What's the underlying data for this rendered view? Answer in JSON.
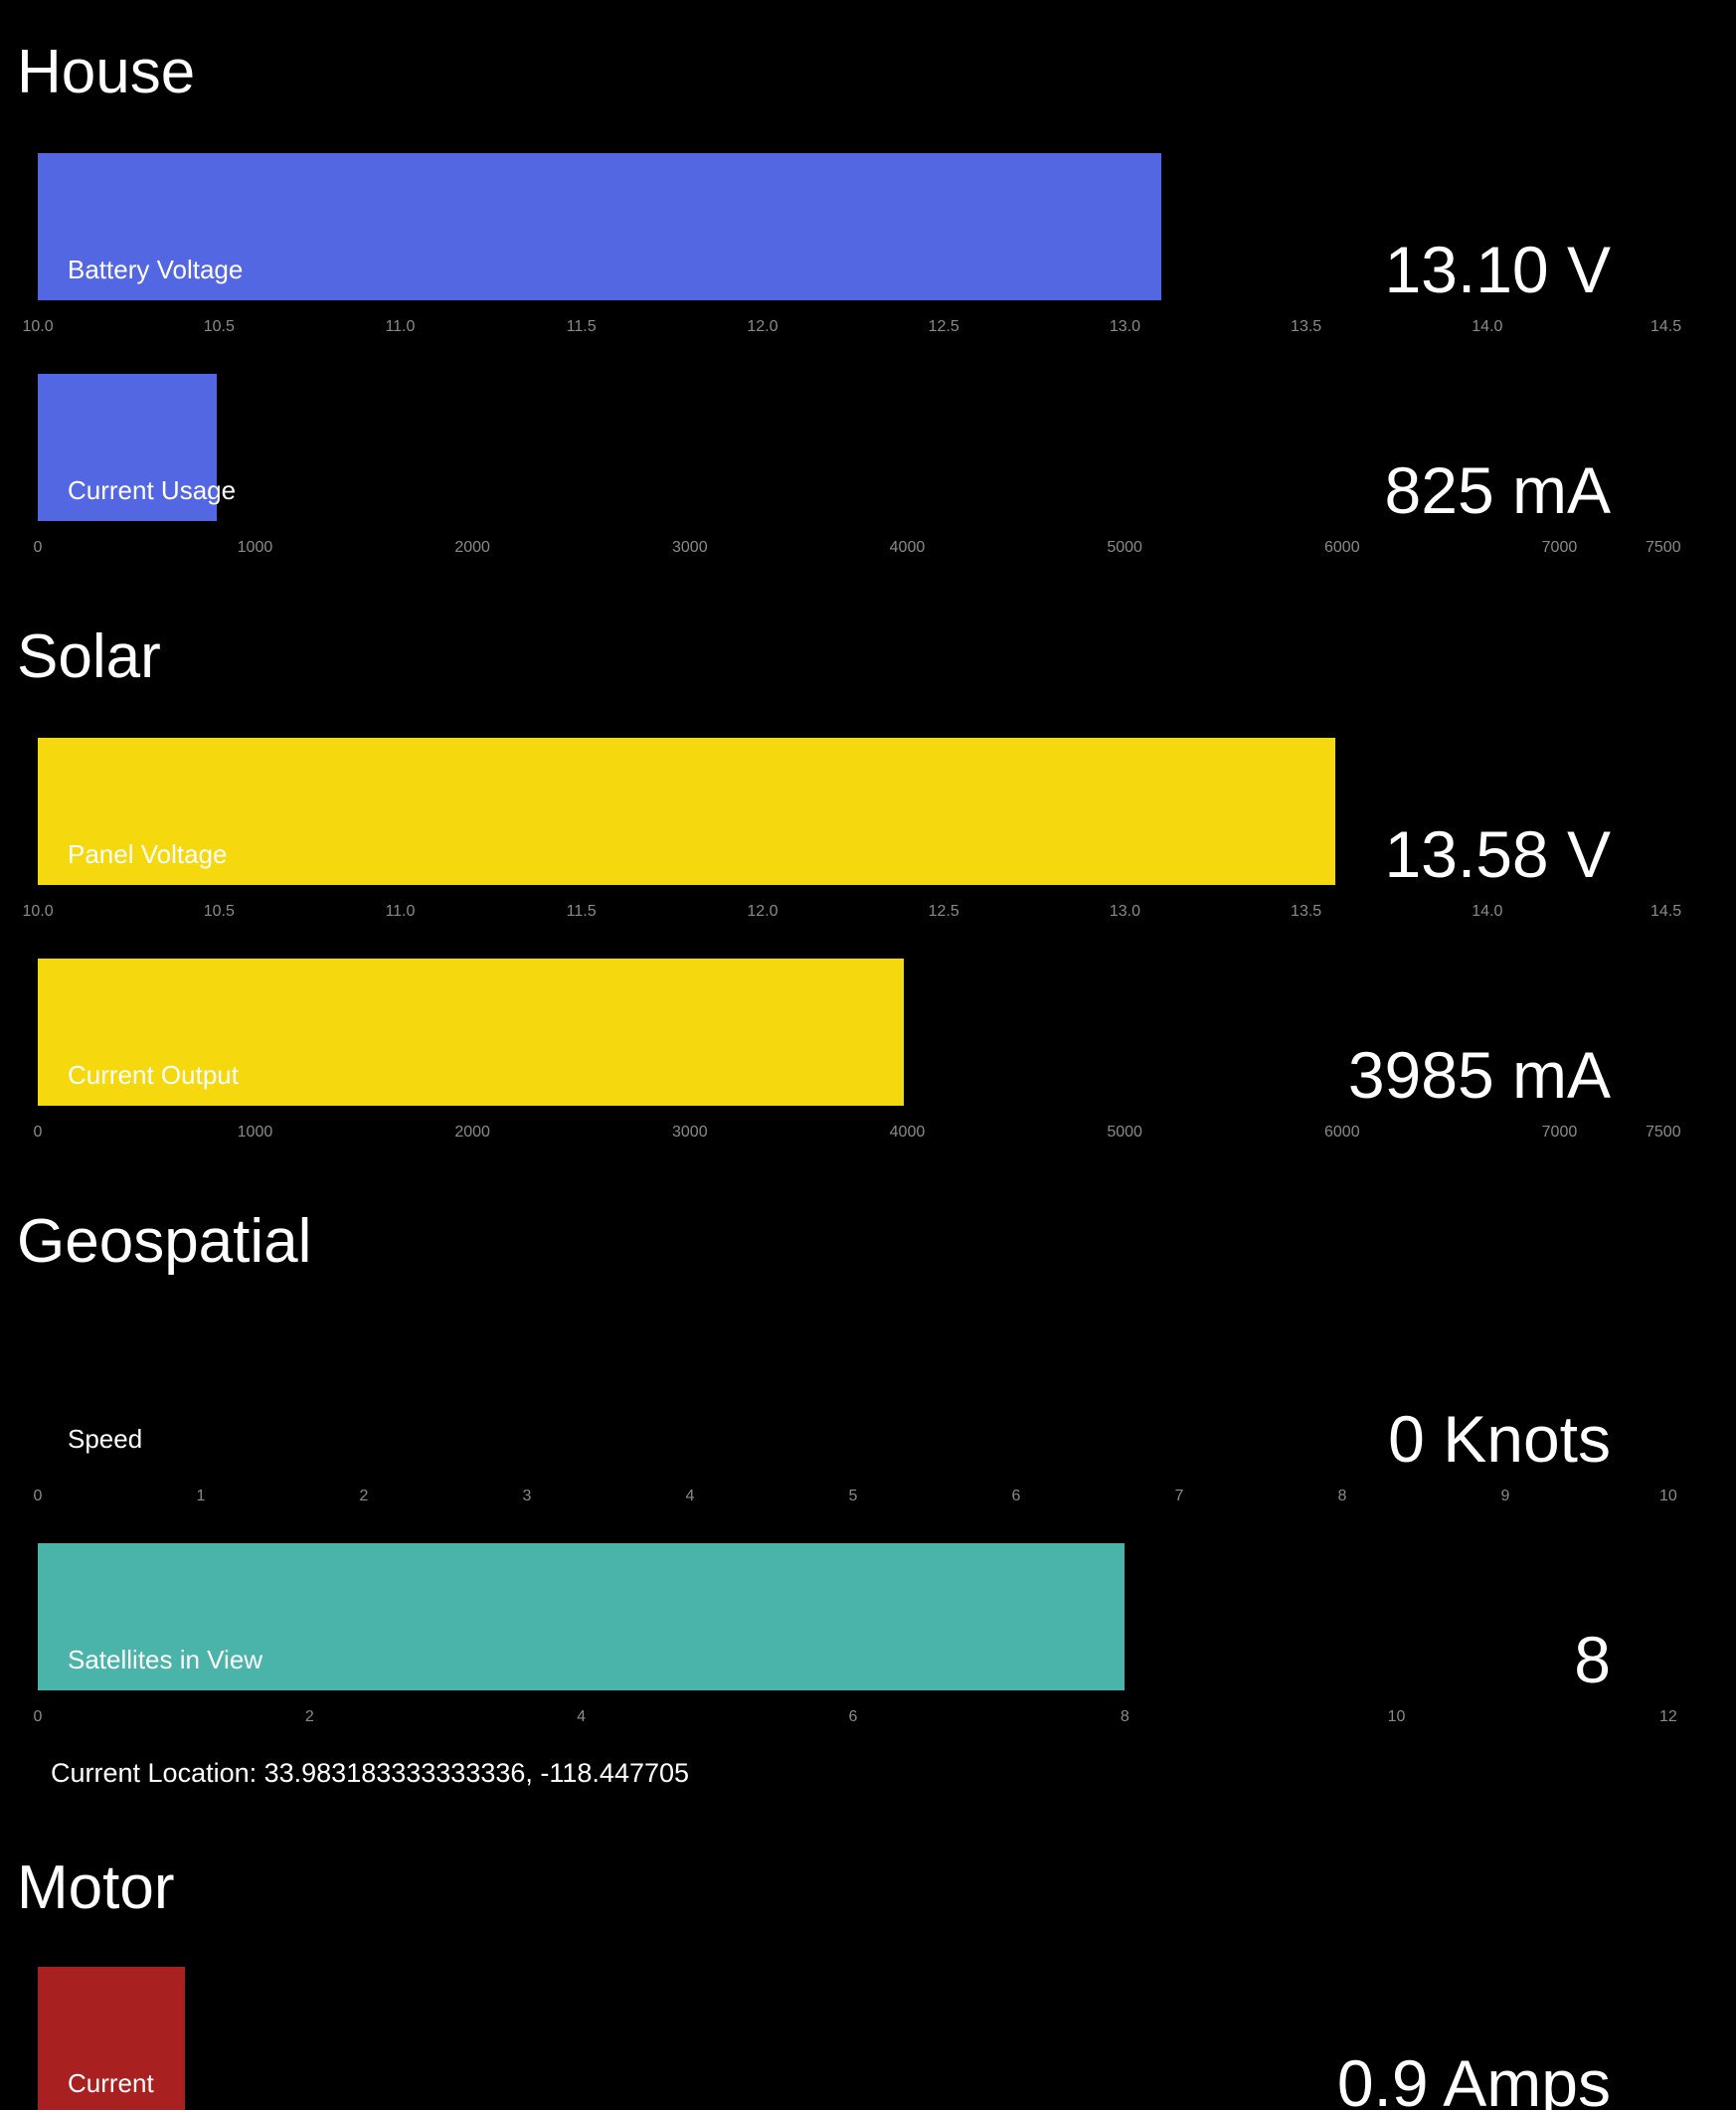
{
  "colors": {
    "house": "#5467e2",
    "solar": "#f6d80f",
    "geospatial": "#4bb4aa",
    "motor": "#a8201f"
  },
  "sections": {
    "house": "House",
    "solar": "Solar",
    "geospatial": "Geospatial",
    "motor": "Motor"
  },
  "gauges": {
    "battery_voltage": {
      "label": "Battery Voltage",
      "value": 13.1,
      "display": "13.10 V",
      "min": 10.0,
      "max": 14.5,
      "ticks": [
        "10.0",
        "10.5",
        "11.0",
        "11.5",
        "12.0",
        "12.5",
        "13.0",
        "13.5",
        "14.0",
        "14.5"
      ]
    },
    "current_usage": {
      "label": "Current Usage",
      "value": 825,
      "display": "825 mA",
      "min": 0,
      "max": 7500,
      "ticks": [
        "0",
        "1000",
        "2000",
        "3000",
        "4000",
        "5000",
        "6000",
        "7000",
        "7500"
      ]
    },
    "panel_voltage": {
      "label": "Panel Voltage",
      "value": 13.58,
      "display": "13.58 V",
      "min": 10.0,
      "max": 14.5,
      "ticks": [
        "10.0",
        "10.5",
        "11.0",
        "11.5",
        "12.0",
        "12.5",
        "13.0",
        "13.5",
        "14.0",
        "14.5"
      ]
    },
    "current_output": {
      "label": "Current Output",
      "value": 3985,
      "display": "3985 mA",
      "min": 0,
      "max": 7500,
      "ticks": [
        "0",
        "1000",
        "2000",
        "3000",
        "4000",
        "5000",
        "6000",
        "7000",
        "7500"
      ]
    },
    "speed": {
      "label": "Speed",
      "value": 0,
      "display": "0 Knots",
      "min": 0,
      "max": 10,
      "ticks": [
        "0",
        "1",
        "2",
        "3",
        "4",
        "5",
        "6",
        "7",
        "8",
        "9",
        "10"
      ]
    },
    "satellites": {
      "label": "Satellites in View",
      "value": 8,
      "display": "8",
      "min": 0,
      "max": 12,
      "ticks": [
        "0",
        "2",
        "4",
        "6",
        "8",
        "10",
        "12"
      ]
    },
    "motor_current": {
      "label": "Current",
      "value": 0.9,
      "display": "0.9 Amps",
      "min": 0,
      "max": 10
    }
  },
  "location": "Current Location: 33.983183333333336, -118.447705"
}
